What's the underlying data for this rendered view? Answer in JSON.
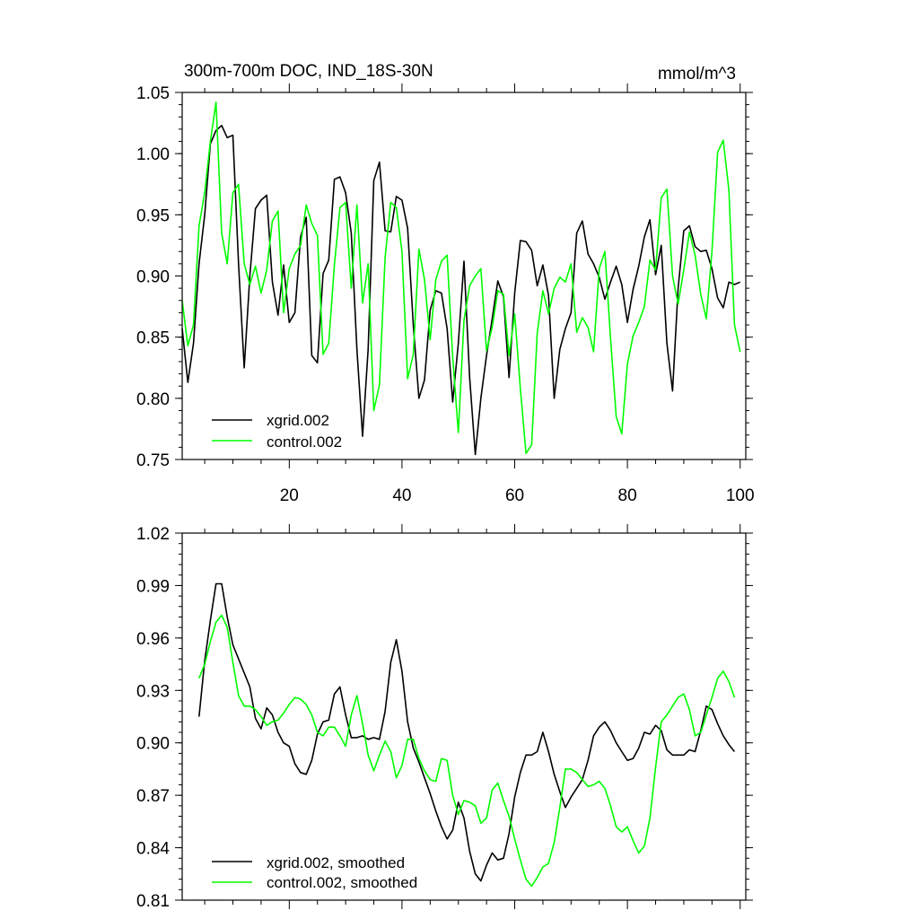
{
  "chart_data": [
    {
      "type": "line",
      "title": "300m-700m DOC, IND_18S-30N",
      "units_label": "mmol/m^3",
      "xlim": [
        1,
        101
      ],
      "ylim": [
        0.75,
        1.05
      ],
      "yticks": [
        "1.05",
        "1.00",
        "0.95",
        "0.90",
        "0.85",
        "0.80",
        "0.75"
      ],
      "xticks": [
        "20",
        "40",
        "60",
        "80",
        "100"
      ],
      "legend_position": "bottom-left",
      "series": [
        {
          "name": "xgrid.002",
          "color": "#000000",
          "x_start": 1,
          "values": [
            0.857,
            0.813,
            0.845,
            0.91,
            0.95,
            1.008,
            1.019,
            1.023,
            1.013,
            1.015,
            0.91,
            0.825,
            0.9,
            0.955,
            0.962,
            0.966,
            0.895,
            0.868,
            0.909,
            0.862,
            0.87,
            0.932,
            0.948,
            0.835,
            0.829,
            0.902,
            0.913,
            0.979,
            0.981,
            0.968,
            0.935,
            0.84,
            0.769,
            0.84,
            0.978,
            0.993,
            0.937,
            0.936,
            0.965,
            0.962,
            0.939,
            0.86,
            0.8,
            0.815,
            0.872,
            0.888,
            0.886,
            0.857,
            0.797,
            0.845,
            0.912,
            0.817,
            0.754,
            0.8,
            0.835,
            0.865,
            0.896,
            0.883,
            0.817,
            0.886,
            0.929,
            0.928,
            0.921,
            0.892,
            0.909,
            0.884,
            0.8,
            0.84,
            0.857,
            0.87,
            0.935,
            0.945,
            0.918,
            0.91,
            0.899,
            0.881,
            0.895,
            0.908,
            0.893,
            0.862,
            0.889,
            0.908,
            0.932,
            0.946,
            0.901,
            0.925,
            0.845,
            0.806,
            0.89,
            0.937,
            0.941,
            0.924,
            0.92,
            0.921,
            0.906,
            0.882,
            0.874,
            0.895,
            0.893,
            0.895
          ]
        },
        {
          "name": "control.002",
          "color": "#00ff00",
          "x_start": 1,
          "values": [
            0.88,
            0.843,
            0.86,
            0.941,
            0.968,
            1.01,
            1.042,
            0.935,
            0.91,
            0.968,
            0.975,
            0.91,
            0.893,
            0.908,
            0.886,
            0.905,
            0.945,
            0.953,
            0.87,
            0.906,
            0.918,
            0.925,
            0.958,
            0.943,
            0.933,
            0.836,
            0.845,
            0.909,
            0.956,
            0.96,
            0.89,
            0.958,
            0.878,
            0.91,
            0.79,
            0.811,
            0.915,
            0.96,
            0.956,
            0.92,
            0.816,
            0.836,
            0.922,
            0.897,
            0.848,
            0.897,
            0.912,
            0.917,
            0.834,
            0.772,
            0.864,
            0.892,
            0.9,
            0.906,
            0.839,
            0.858,
            0.888,
            0.885,
            0.835,
            0.869,
            0.808,
            0.755,
            0.762,
            0.853,
            0.888,
            0.869,
            0.89,
            0.899,
            0.895,
            0.91,
            0.854,
            0.866,
            0.858,
            0.838,
            0.906,
            0.92,
            0.849,
            0.785,
            0.771,
            0.828,
            0.851,
            0.862,
            0.875,
            0.913,
            0.905,
            0.964,
            0.971,
            0.9,
            0.877,
            0.905,
            0.936,
            0.917,
            0.885,
            0.865,
            0.92,
            1.001,
            1.011,
            0.97,
            0.86,
            0.838
          ]
        }
      ]
    },
    {
      "type": "line",
      "xlim": [
        1,
        101
      ],
      "ylim": [
        0.81,
        1.02
      ],
      "yticks": [
        "1.02",
        "0.99",
        "0.96",
        "0.93",
        "0.90",
        "0.87",
        "0.84",
        "0.81"
      ],
      "xticks": [],
      "legend_position": "bottom-left",
      "series": [
        {
          "name": "xgrid.002, smoothed",
          "color": "#000000",
          "x_start": 4,
          "values": [
            0.915,
            0.947,
            0.97,
            0.991,
            0.991,
            0.972,
            0.956,
            0.948,
            0.94,
            0.932,
            0.914,
            0.908,
            0.92,
            0.916,
            0.906,
            0.9,
            0.898,
            0.888,
            0.883,
            0.882,
            0.89,
            0.905,
            0.912,
            0.913,
            0.928,
            0.932,
            0.916,
            0.903,
            0.903,
            0.904,
            0.902,
            0.903,
            0.902,
            0.918,
            0.946,
            0.959,
            0.941,
            0.912,
            0.897,
            0.889,
            0.88,
            0.871,
            0.861,
            0.852,
            0.845,
            0.85,
            0.866,
            0.857,
            0.838,
            0.825,
            0.821,
            0.83,
            0.837,
            0.833,
            0.834,
            0.848,
            0.869,
            0.883,
            0.893,
            0.893,
            0.895,
            0.906,
            0.895,
            0.882,
            0.872,
            0.863,
            0.869,
            0.874,
            0.879,
            0.89,
            0.904,
            0.909,
            0.912,
            0.907,
            0.9,
            0.895,
            0.89,
            0.891,
            0.897,
            0.906,
            0.905,
            0.91,
            0.907,
            0.896,
            0.893,
            0.893,
            0.893,
            0.896,
            0.895,
            0.907,
            0.921,
            0.919,
            0.911,
            0.904,
            0.899,
            0.895
          ]
        },
        {
          "name": "control.002, smoothed",
          "color": "#00ff00",
          "x_start": 4,
          "values": [
            0.937,
            0.945,
            0.958,
            0.969,
            0.973,
            0.966,
            0.946,
            0.927,
            0.921,
            0.921,
            0.919,
            0.915,
            0.91,
            0.912,
            0.913,
            0.917,
            0.922,
            0.926,
            0.925,
            0.922,
            0.916,
            0.906,
            0.904,
            0.909,
            0.909,
            0.904,
            0.898,
            0.916,
            0.927,
            0.911,
            0.893,
            0.884,
            0.893,
            0.901,
            0.895,
            0.88,
            0.887,
            0.902,
            0.902,
            0.891,
            0.884,
            0.879,
            0.878,
            0.891,
            0.89,
            0.87,
            0.859,
            0.867,
            0.866,
            0.864,
            0.854,
            0.857,
            0.873,
            0.877,
            0.867,
            0.858,
            0.845,
            0.833,
            0.822,
            0.818,
            0.823,
            0.829,
            0.831,
            0.843,
            0.863,
            0.885,
            0.885,
            0.883,
            0.879,
            0.875,
            0.876,
            0.878,
            0.874,
            0.864,
            0.852,
            0.849,
            0.852,
            0.844,
            0.837,
            0.841,
            0.857,
            0.886,
            0.912,
            0.916,
            0.921,
            0.926,
            0.928,
            0.919,
            0.904,
            0.906,
            0.916,
            0.926,
            0.937,
            0.941,
            0.935,
            0.926
          ]
        }
      ]
    }
  ]
}
